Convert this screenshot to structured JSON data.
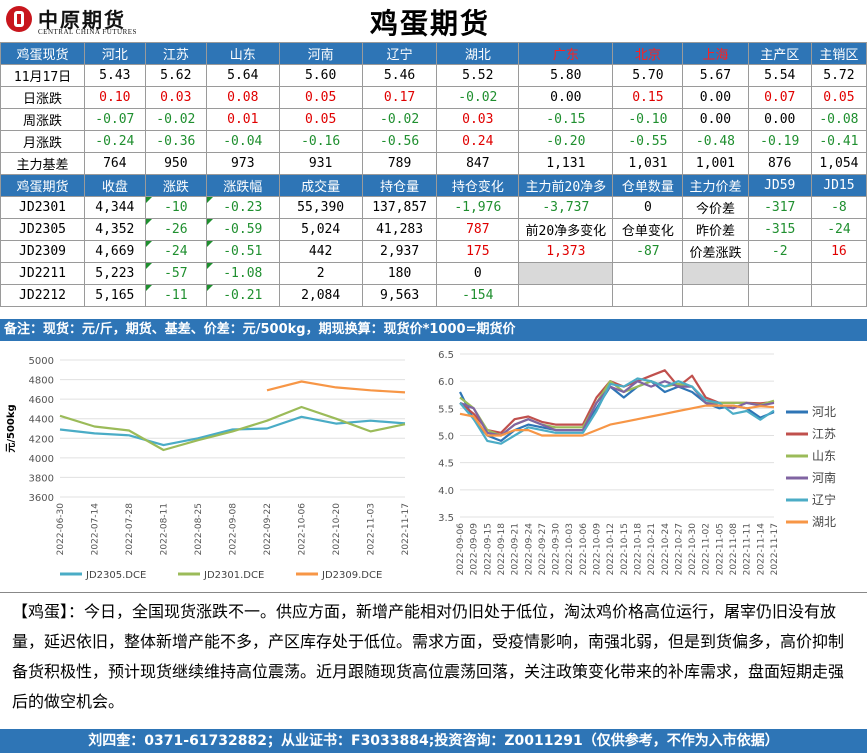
{
  "logo": {
    "cn": "中原期货",
    "en": "CENTRAL CHINA FUTURES"
  },
  "title": "鸡蛋期货",
  "spot": {
    "header": [
      "鸡蛋现货",
      "河北",
      "江苏",
      "山东",
      "河南",
      "辽宁",
      "湖北",
      "广东",
      "北京",
      "上海",
      "主产区",
      "主销区"
    ],
    "rows": [
      {
        "label": "11月17日",
        "cells": [
          "5.43",
          "5.62",
          "5.64",
          "5.60",
          "5.46",
          "5.52",
          "5.80",
          "5.70",
          "5.67",
          "5.54",
          "5.72"
        ]
      },
      {
        "label": "日涨跌",
        "cells": [
          "0.10",
          "0.03",
          "0.08",
          "0.05",
          "0.17",
          "-0.02",
          "0.00",
          "0.15",
          "0.00",
          "0.07",
          "0.05"
        ]
      },
      {
        "label": "周涨跌",
        "cells": [
          "-0.07",
          "-0.02",
          "0.01",
          "0.05",
          "-0.02",
          "0.03",
          "-0.15",
          "-0.10",
          "0.00",
          "0.00",
          "-0.08"
        ]
      },
      {
        "label": "月涨跌",
        "cells": [
          "-0.24",
          "-0.36",
          "-0.04",
          "-0.16",
          "-0.56",
          "0.24",
          "-0.20",
          "-0.55",
          "-0.48",
          "-0.19",
          "-0.41"
        ]
      },
      {
        "label": "主力基差",
        "cells": [
          "764",
          "950",
          "973",
          "931",
          "789",
          "847",
          "1,131",
          "1,031",
          "1,001",
          "876",
          "1,054"
        ]
      }
    ]
  },
  "futures": {
    "header": [
      "鸡蛋期货",
      "收盘",
      "涨跌",
      "涨跌幅",
      "成交量",
      "持仓量",
      "持仓变化",
      "主力前20净多",
      "仓单数量",
      "主力价差",
      "JD59",
      "JD15"
    ],
    "rows": [
      {
        "contract": "JD2301",
        "close": "4,344",
        "chg": "-10",
        "pct": "-0.23",
        "vol": "55,390",
        "oi": "137,857",
        "oichg": "-1,976"
      },
      {
        "contract": "JD2305",
        "close": "4,352",
        "chg": "-26",
        "pct": "-0.59",
        "vol": "5,024",
        "oi": "41,283",
        "oichg": "787"
      },
      {
        "contract": "JD2309",
        "close": "4,669",
        "chg": "-24",
        "pct": "-0.51",
        "vol": "442",
        "oi": "2,937",
        "oichg": "175"
      },
      {
        "contract": "JD2211",
        "close": "5,223",
        "chg": "-57",
        "pct": "-1.08",
        "vol": "2",
        "oi": "180",
        "oichg": "0"
      },
      {
        "contract": "JD2212",
        "close": "5,165",
        "chg": "-11",
        "pct": "-0.21",
        "vol": "2,084",
        "oi": "9,563",
        "oichg": "-154"
      }
    ],
    "net_long": "-3,737",
    "warrants": "0",
    "net_long_chg_label": "前20净多变化",
    "warrant_chg_label": "仓单变化",
    "net_long_chg": "1,373",
    "warrant_chg": "-87",
    "spread_labels": [
      "今价差",
      "昨价差",
      "价差涨跌"
    ],
    "jd59": [
      "-317",
      "-315",
      "-2"
    ],
    "jd15": [
      "-8",
      "-24",
      "16"
    ]
  },
  "note": "备注：现货：元/斤，期货、基差、价差：元/500kg，期现换算：现货价*1000=期货价",
  "chart_data": [
    {
      "type": "line",
      "ylabel": "元/500kg",
      "ylim": [
        3600,
        5000
      ],
      "yticks": [
        3600,
        3800,
        4000,
        4200,
        4400,
        4600,
        4800,
        5000
      ],
      "x": [
        "2022-06-30",
        "2022-07-14",
        "2022-07-28",
        "2022-08-11",
        "2022-08-25",
        "2022-09-08",
        "2022-09-22",
        "2022-10-06",
        "2022-10-20",
        "2022-11-03",
        "2022-11-17"
      ],
      "legend_position": "bottom",
      "series": [
        {
          "name": "JD2305.DCE",
          "color": "#4aacc6",
          "values": [
            4290,
            4250,
            4230,
            4130,
            4200,
            4290,
            4300,
            4420,
            4350,
            4380,
            4352
          ]
        },
        {
          "name": "JD2301.DCE",
          "color": "#9bbb59",
          "values": [
            4430,
            4320,
            4280,
            4080,
            4180,
            4270,
            4380,
            4520,
            4400,
            4270,
            4344
          ]
        },
        {
          "name": "JD2309.DCE",
          "color": "#f79646",
          "values": [
            null,
            null,
            null,
            null,
            null,
            null,
            4690,
            4780,
            4720,
            4690,
            4669
          ]
        }
      ]
    },
    {
      "type": "line",
      "ylim": [
        3.5,
        6.5
      ],
      "yticks": [
        3.5,
        4.0,
        4.5,
        5.0,
        5.5,
        6.0,
        6.5
      ],
      "x": [
        "2022-09-06",
        "2022-09-09",
        "2022-09-15",
        "2022-09-18",
        "2022-09-21",
        "2022-09-24",
        "2022-09-27",
        "2022-09-30",
        "2022-10-03",
        "2022-10-06",
        "2022-10-09",
        "2022-10-12",
        "2022-10-15",
        "2022-10-18",
        "2022-10-21",
        "2022-10-24",
        "2022-10-27",
        "2022-10-30",
        "2022-11-02",
        "2022-11-05",
        "2022-11-08",
        "2022-11-11",
        "2022-11-14",
        "2022-11-17"
      ],
      "legend_position": "right",
      "series": [
        {
          "name": "河北",
          "color": "#2e75b6",
          "values": [
            5.8,
            5.3,
            5.0,
            4.9,
            5.1,
            5.2,
            5.15,
            5.1,
            5.1,
            5.1,
            5.5,
            5.9,
            5.7,
            5.9,
            6.0,
            5.8,
            5.9,
            5.8,
            5.6,
            5.5,
            5.55,
            5.5,
            5.33,
            5.43
          ]
        },
        {
          "name": "江苏",
          "color": "#c0504d",
          "values": [
            5.6,
            5.4,
            5.1,
            5.05,
            5.3,
            5.35,
            5.25,
            5.2,
            5.2,
            5.2,
            5.7,
            6.0,
            5.9,
            6.0,
            6.1,
            6.2,
            5.9,
            6.1,
            5.7,
            5.6,
            5.6,
            5.6,
            5.59,
            5.62
          ]
        },
        {
          "name": "山东",
          "color": "#9bbb59",
          "values": [
            5.7,
            5.5,
            5.1,
            5.0,
            5.2,
            5.3,
            5.2,
            5.15,
            5.15,
            5.15,
            5.6,
            6.0,
            5.8,
            5.9,
            6.0,
            5.9,
            5.95,
            5.9,
            5.6,
            5.6,
            5.6,
            5.6,
            5.56,
            5.64
          ]
        },
        {
          "name": "河南",
          "color": "#8064a2",
          "values": [
            5.6,
            5.5,
            5.05,
            5.0,
            5.2,
            5.3,
            5.2,
            5.1,
            5.1,
            5.1,
            5.6,
            5.9,
            5.8,
            6.0,
            5.9,
            6.0,
            5.9,
            5.9,
            5.6,
            5.55,
            5.5,
            5.6,
            5.55,
            5.6
          ]
        },
        {
          "name": "辽宁",
          "color": "#4bacc6",
          "values": [
            5.6,
            5.3,
            4.9,
            4.85,
            5.0,
            5.15,
            5.1,
            5.05,
            5.05,
            5.05,
            5.45,
            5.95,
            5.9,
            6.05,
            6.0,
            5.9,
            6.0,
            5.9,
            5.65,
            5.6,
            5.4,
            5.45,
            5.29,
            5.46
          ]
        },
        {
          "name": "湖北",
          "color": "#f79646",
          "values": [
            5.4,
            5.35,
            5.0,
            5.0,
            5.1,
            5.1,
            5.0,
            5.0,
            5.0,
            5.0,
            5.1,
            5.2,
            5.25,
            5.3,
            5.35,
            5.4,
            5.45,
            5.5,
            5.55,
            5.55,
            5.55,
            5.5,
            5.54,
            5.52
          ]
        }
      ]
    }
  ],
  "comment": "【鸡蛋】：今日，全国现货涨跌不一。供应方面，新增产能相对仍旧处于低位，淘汰鸡价格高位运行，屠宰仍旧没有放量，延迟依旧，整体新增产能不多，产区库存处于低位。需求方面，受疫情影响，南强北弱，但是到货偏多，高价抑制备货积极性，预计现货继续维持高位震荡。近月跟随现货高位震荡回落，关注政策变化带来的补库需求，盘面短期走强后的做空机会。",
  "footer": "刘四奎：0371-61732882；从业证书：F3033884;投资咨询：Z0011291（仅供参考，不作为入市依据）"
}
